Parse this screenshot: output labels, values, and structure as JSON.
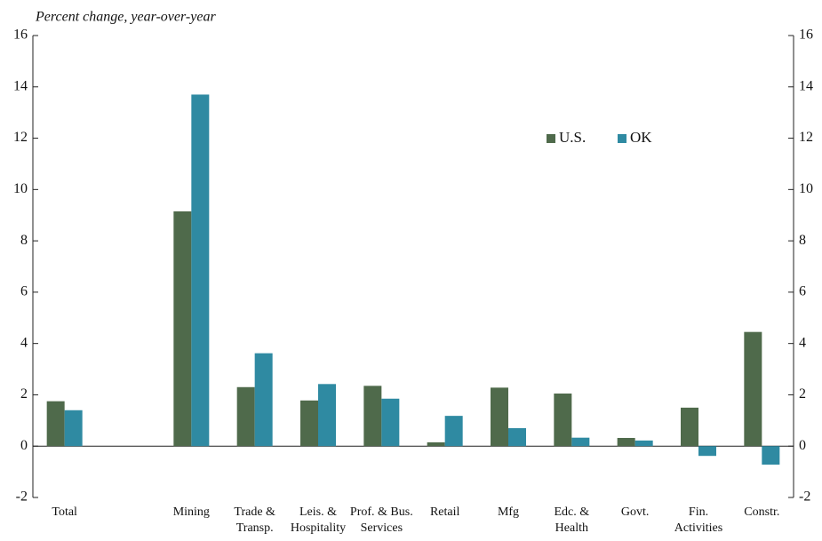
{
  "chart_data": {
    "type": "bar",
    "y_label": "Percent change, year-over-year",
    "categories": [
      "Total",
      null,
      "Mining",
      "Trade &\nTransp.",
      "Leis. &\nHospitality",
      "Prof. & Bus.\nServices",
      "Retail",
      "Mfg",
      "Edc. &\nHealth",
      "Govt.",
      "Fin.\nActivities",
      "Constr."
    ],
    "series": [
      {
        "name": "U.S.",
        "color": "#4f6a4b",
        "values": [
          1.75,
          null,
          9.15,
          2.3,
          1.78,
          2.35,
          0.15,
          2.28,
          2.05,
          0.32,
          1.5,
          4.45
        ]
      },
      {
        "name": "OK",
        "color": "#2f8aa2",
        "values": [
          1.4,
          null,
          13.7,
          3.62,
          2.42,
          1.85,
          1.18,
          0.7,
          0.33,
          0.22,
          -0.38,
          -0.72
        ]
      }
    ],
    "ylim": [
      -2,
      16
    ],
    "yticks": [
      -2,
      0,
      2,
      4,
      6,
      8,
      10,
      12,
      14,
      16
    ],
    "y2lim": [
      -2,
      16
    ],
    "y2ticks": [
      -2,
      0,
      2,
      4,
      6,
      8,
      10,
      12,
      14,
      16
    ],
    "grid": false,
    "legend": "upper right"
  }
}
